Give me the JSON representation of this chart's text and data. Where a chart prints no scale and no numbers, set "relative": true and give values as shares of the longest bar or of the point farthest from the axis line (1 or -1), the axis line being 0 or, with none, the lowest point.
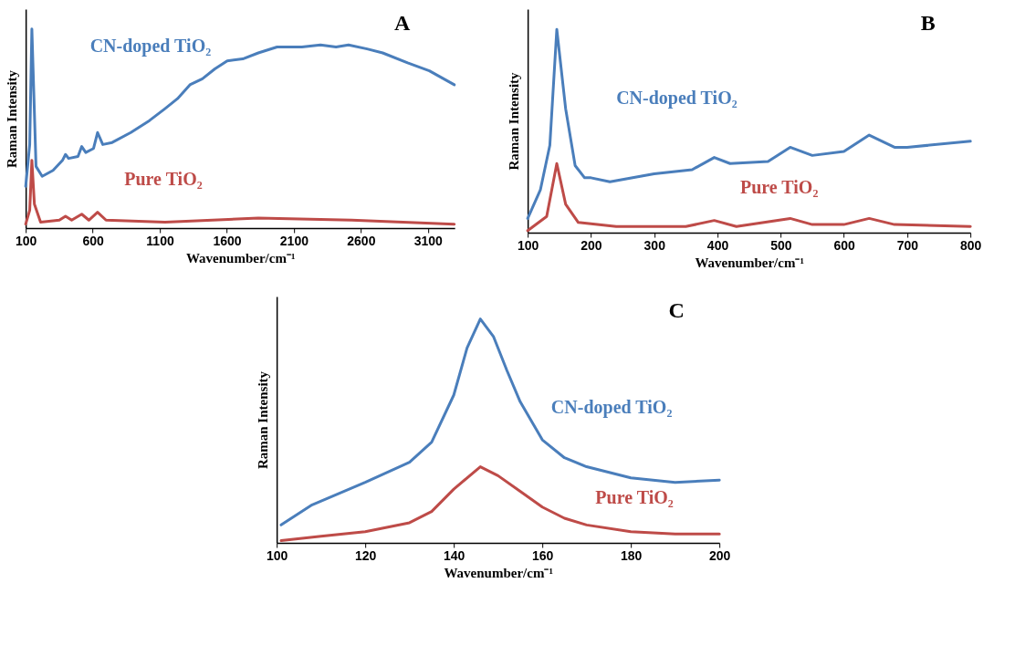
{
  "chart_data": [
    {
      "type": "line",
      "title": "A",
      "xlabel": "Wavenumber/cm⁻¹",
      "ylabel": "Raman Intensity",
      "relative": true,
      "xlim": [
        100,
        3300
      ],
      "xticks": [
        100,
        600,
        1100,
        1600,
        2100,
        2600,
        3100
      ],
      "tick_labels": "x",
      "grid": false,
      "marker": "none",
      "line_style": "solid",
      "series": [
        {
          "name": "CN-doped TiO₂",
          "color": "#4a7ebb",
          "x": [
            100,
            130,
            146,
            160,
            177,
            223,
            304,
            374,
            397,
            420,
            490,
            518,
            548,
            606,
            636,
            675,
            745,
            884,
            1023,
            1139,
            1232,
            1325,
            1418,
            1511,
            1603,
            1719,
            1835,
            1975,
            2160,
            2299,
            2415,
            2508,
            2647,
            2763,
            2949,
            3111,
            3297
          ],
          "values": [
            0.21,
            0.42,
            1.0,
            0.69,
            0.31,
            0.26,
            0.29,
            0.34,
            0.37,
            0.35,
            0.36,
            0.41,
            0.38,
            0.4,
            0.48,
            0.42,
            0.43,
            0.48,
            0.54,
            0.6,
            0.65,
            0.72,
            0.75,
            0.8,
            0.84,
            0.85,
            0.88,
            0.91,
            0.91,
            0.92,
            0.91,
            0.92,
            0.9,
            0.88,
            0.83,
            0.79,
            0.72
          ]
        },
        {
          "name": "Pure TiO₂",
          "color": "#be4b48",
          "x": [
            100,
            130,
            146,
            165,
            211,
            351,
            397,
            443,
            518,
            571,
            636,
            699,
            1139,
            1835,
            2531,
            3297
          ],
          "values": [
            0.02,
            0.09,
            0.34,
            0.12,
            0.03,
            0.04,
            0.06,
            0.04,
            0.07,
            0.04,
            0.08,
            0.04,
            0.03,
            0.05,
            0.04,
            0.02
          ]
        }
      ]
    },
    {
      "type": "line",
      "title": "B",
      "xlabel": "Wavenumber/cm⁻¹",
      "ylabel": "Raman Intensity",
      "relative": true,
      "xlim": [
        100,
        800
      ],
      "xticks": [
        100,
        200,
        300,
        400,
        500,
        600,
        700,
        800
      ],
      "tick_labels": "x",
      "grid": false,
      "marker": "none",
      "line_style": "solid",
      "series": [
        {
          "name": "CN-doped TiO₂",
          "color": "#4a7ebb",
          "x": [
            100,
            120,
            135,
            146,
            160,
            175,
            190,
            200,
            230,
            300,
            360,
            395,
            420,
            480,
            515,
            550,
            600,
            640,
            680,
            700,
            800
          ],
          "values": [
            0.07,
            0.21,
            0.43,
            1.0,
            0.61,
            0.33,
            0.27,
            0.27,
            0.25,
            0.29,
            0.31,
            0.37,
            0.34,
            0.35,
            0.42,
            0.38,
            0.4,
            0.48,
            0.42,
            0.42,
            0.45
          ]
        },
        {
          "name": "Pure TiO₂",
          "color": "#be4b48",
          "x": [
            100,
            130,
            146,
            160,
            180,
            240,
            350,
            395,
            430,
            515,
            550,
            600,
            640,
            680,
            800
          ],
          "values": [
            0.01,
            0.08,
            0.34,
            0.14,
            0.05,
            0.03,
            0.03,
            0.06,
            0.03,
            0.07,
            0.04,
            0.04,
            0.07,
            0.04,
            0.03
          ]
        }
      ]
    },
    {
      "type": "line",
      "title": "C",
      "xlabel": "Wavenumber/cm⁻¹",
      "ylabel": "Raman Intensity",
      "relative": true,
      "xlim": [
        100,
        200
      ],
      "xticks": [
        100,
        120,
        140,
        160,
        180,
        200
      ],
      "tick_labels": "x",
      "grid": false,
      "marker": "none",
      "line_style": "solid",
      "series": [
        {
          "name": "CN-doped TiO₂",
          "color": "#4a7ebb",
          "x": [
            101,
            108,
            120,
            130,
            135,
            140,
            143,
            146,
            149,
            152,
            155,
            160,
            165,
            170,
            180,
            190,
            200
          ],
          "values": [
            0.08,
            0.17,
            0.27,
            0.36,
            0.45,
            0.66,
            0.87,
            1.0,
            0.92,
            0.77,
            0.63,
            0.46,
            0.38,
            0.34,
            0.29,
            0.27,
            0.28
          ]
        },
        {
          "name": "Pure TiO₂",
          "color": "#be4b48",
          "x": [
            101,
            110,
            120,
            130,
            135,
            140,
            146,
            150,
            155,
            160,
            165,
            170,
            180,
            190,
            200
          ],
          "values": [
            0.01,
            0.03,
            0.05,
            0.09,
            0.14,
            0.24,
            0.34,
            0.3,
            0.23,
            0.16,
            0.11,
            0.08,
            0.05,
            0.04,
            0.04
          ]
        }
      ]
    }
  ]
}
